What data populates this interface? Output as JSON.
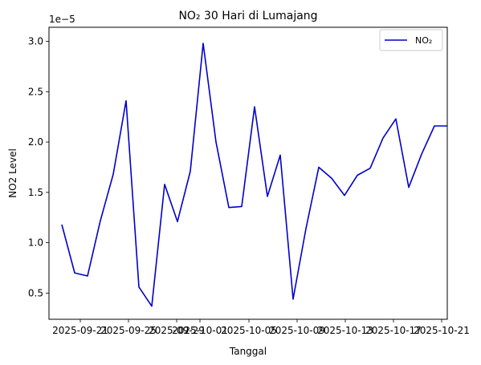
{
  "chart_data": {
    "type": "line",
    "title": "NO₂ 30 Hari di Lumajang",
    "xlabel": "Tanggal",
    "ylabel": "NO2 Level",
    "y_offset_label": "1e−5",
    "ylim": [
      2.4e-06,
      3.14e-05
    ],
    "xlim": [
      "2025-09-20",
      "2025-10-21"
    ],
    "x_tick_labels": [
      "2025-09-21",
      "2025-09-25",
      "2025-09-29",
      "2025-10-01",
      "2025-10-05",
      "2025-10-09",
      "2025-10-13",
      "2025-10-17",
      "2025-10-21"
    ],
    "y_tick_labels": [
      "0.5",
      "1.0",
      "1.5",
      "2.0",
      "2.5",
      "3.0"
    ],
    "legend": {
      "position": "upper right",
      "entries": [
        "NO₂"
      ]
    },
    "grid": false,
    "series": [
      {
        "name": "NO₂",
        "color": "#0000cc",
        "x": [
          "2025-09-21",
          "2025-09-22",
          "2025-09-23",
          "2025-09-24",
          "2025-09-25",
          "2025-09-26",
          "2025-09-27",
          "2025-09-28",
          "2025-09-29",
          "2025-09-30",
          "2025-10-01",
          "2025-10-02",
          "2025-10-03",
          "2025-10-04",
          "2025-10-05",
          "2025-10-06",
          "2025-10-07",
          "2025-10-08",
          "2025-10-09",
          "2025-10-10",
          "2025-10-11",
          "2025-10-12",
          "2025-10-13",
          "2025-10-14",
          "2025-10-15",
          "2025-10-16",
          "2025-10-17",
          "2025-10-18",
          "2025-10-19",
          "2025-10-20",
          "2025-10-21"
        ],
        "values": [
          1.18e-05,
          7e-06,
          6.7e-06,
          1.22e-05,
          1.68e-05,
          2.41e-05,
          5.6e-06,
          3.7e-06,
          1.58e-05,
          1.21e-05,
          1.71e-05,
          2.98e-05,
          2e-05,
          1.35e-05,
          1.36e-05,
          2.35e-05,
          1.46e-05,
          1.87e-05,
          4.4e-06,
          1.14e-05,
          1.75e-05,
          1.64e-05,
          1.47e-05,
          1.67e-05,
          1.74e-05,
          2.04e-05,
          2.23e-05,
          1.55e-05,
          1.88e-05,
          2.16e-05,
          2.16e-05
        ]
      }
    ]
  }
}
